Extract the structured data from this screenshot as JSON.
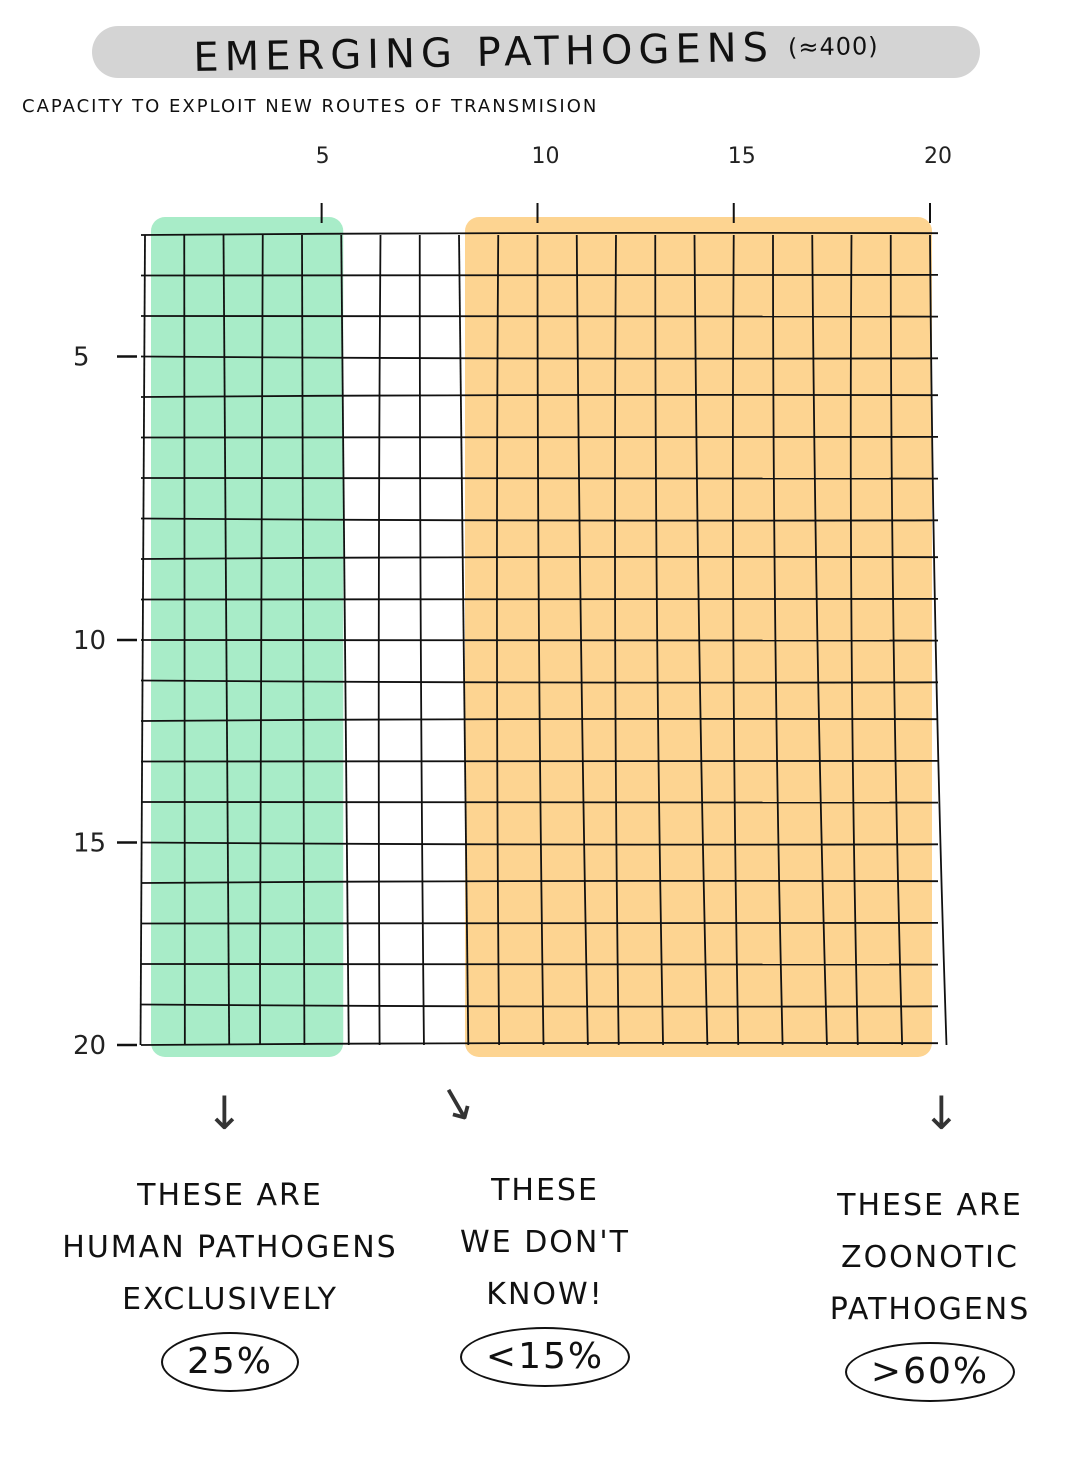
{
  "header": {
    "title": "EMERGING PATHOGENS",
    "title_estimate": "(≈400)",
    "subtitle": "CAPACITY TO EXPLOIT NEW ROUTES OF TRANSMISION"
  },
  "axes": {
    "top_ticks": [
      "5",
      "10",
      "15",
      "20"
    ],
    "left_ticks": [
      "5",
      "10",
      "15",
      "20"
    ]
  },
  "grid": {
    "columns": 20,
    "rows": 20,
    "segments": [
      {
        "name": "human",
        "color": "#a8ecc8",
        "from_col": 0,
        "to_col": 5,
        "share_label": "25%"
      },
      {
        "name": "unknown",
        "color": "#ffffff",
        "from_col": 5,
        "to_col": 8,
        "share_label": "<15%"
      },
      {
        "name": "zoonotic",
        "color": "#fdd491",
        "from_col": 8,
        "to_col": 20,
        "share_label": ">60%"
      }
    ]
  },
  "captions": {
    "human": {
      "lines": [
        "THESE ARE",
        "HUMAN PATHOGENS",
        "EXCLUSIVELY"
      ],
      "share": "25%"
    },
    "unknown": {
      "lines": [
        "THESE",
        "WE DON'T",
        "KNOW!"
      ],
      "share": "<15%"
    },
    "zoonotic": {
      "lines": [
        "THESE ARE",
        "ZOONOTIC",
        "PATHOGENS"
      ],
      "share": ">60%"
    }
  },
  "colors": {
    "human": "#a8ecc8",
    "zoonotic": "#fdd491",
    "ink": "#111111",
    "title_bar": "#d4d4d4"
  }
}
